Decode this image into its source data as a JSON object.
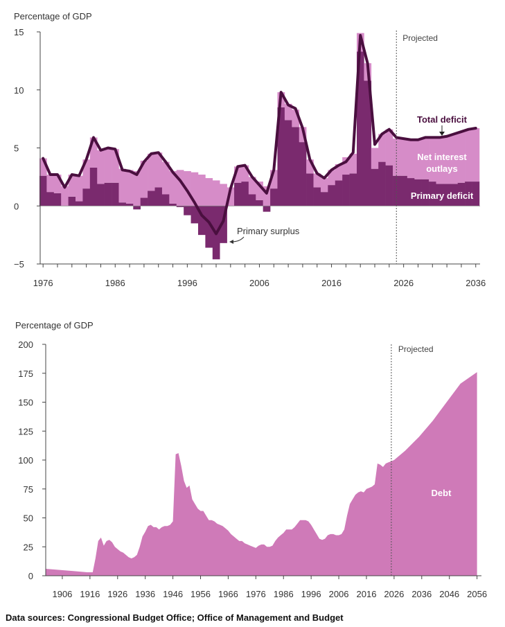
{
  "colors": {
    "net_interest": "#d68cc8",
    "primary": "#7a2a6e",
    "total_line": "#4a0f3f",
    "debt": "#cf7ab8",
    "axis": "#444444"
  },
  "chart_data": [
    {
      "type": "bar",
      "ylabel": "Percentage of GDP",
      "ylim": [
        -5,
        15
      ],
      "yticks": [
        "15",
        "10",
        "5",
        "0",
        "−5"
      ],
      "xticks": [
        "1976",
        "1986",
        "1996",
        "2006",
        "2016",
        "2026",
        "2036"
      ],
      "projected_label": "Projected",
      "projected_start": 2025,
      "annotations": {
        "total_deficit": "Total deficit",
        "net_interest": [
          "Net interest",
          "outlays"
        ],
        "primary_deficit": "Primary deficit",
        "primary_surplus": "Primary surplus"
      },
      "years": [
        1976,
        1977,
        1978,
        1979,
        1980,
        1981,
        1982,
        1983,
        1984,
        1985,
        1986,
        1987,
        1988,
        1989,
        1990,
        1991,
        1992,
        1993,
        1994,
        1995,
        1996,
        1997,
        1998,
        1999,
        2000,
        2001,
        2002,
        2003,
        2004,
        2005,
        2006,
        2007,
        2008,
        2009,
        2010,
        2011,
        2012,
        2013,
        2014,
        2015,
        2016,
        2017,
        2018,
        2019,
        2020,
        2021,
        2022,
        2023,
        2024,
        2025,
        2026,
        2027,
        2028,
        2029,
        2030,
        2031,
        2032,
        2033,
        2034,
        2035,
        2036
      ],
      "series": [
        {
          "name": "Net interest outlays",
          "values": [
            1.5,
            1.5,
            1.6,
            1.7,
            1.9,
            2.2,
            2.5,
            2.6,
            2.9,
            3.0,
            2.9,
            2.9,
            2.9,
            3.0,
            3.2,
            3.2,
            3.0,
            2.8,
            2.8,
            3.1,
            3.0,
            2.9,
            2.7,
            2.4,
            2.2,
            1.9,
            1.6,
            1.4,
            1.4,
            1.5,
            1.6,
            1.7,
            1.6,
            1.3,
            1.4,
            1.5,
            1.3,
            1.2,
            1.2,
            1.2,
            1.3,
            1.4,
            1.5,
            1.7,
            1.6,
            1.5,
            1.8,
            2.4,
            3.1,
            3.2,
            3.2,
            3.3,
            3.4,
            3.6,
            3.8,
            4.0,
            4.1,
            4.3,
            4.4,
            4.5,
            4.6
          ]
        },
        {
          "name": "Primary deficit",
          "values": [
            2.6,
            1.2,
            1.1,
            0.0,
            0.8,
            0.4,
            1.5,
            3.3,
            1.9,
            2.0,
            2.0,
            0.3,
            0.2,
            -0.3,
            0.7,
            1.3,
            1.6,
            1.0,
            0.2,
            -0.1,
            -0.8,
            -1.5,
            -2.5,
            -3.6,
            -4.6,
            -3.2,
            0.0,
            2.0,
            2.1,
            1.0,
            0.5,
            -0.5,
            1.5,
            8.5,
            7.4,
            6.8,
            5.5,
            2.8,
            1.6,
            1.2,
            1.8,
            2.2,
            2.7,
            2.8,
            13.3,
            10.8,
            3.2,
            3.8,
            3.5,
            2.6,
            2.6,
            2.4,
            2.3,
            2.3,
            2.1,
            1.9,
            1.9,
            1.9,
            2.0,
            2.1,
            2.1
          ]
        },
        {
          "name": "Total deficit",
          "values": [
            4.1,
            2.7,
            2.7,
            1.6,
            2.7,
            2.6,
            4.0,
            5.9,
            4.8,
            5.0,
            4.9,
            3.1,
            3.0,
            2.7,
            3.8,
            4.5,
            4.6,
            3.8,
            2.9,
            2.2,
            1.3,
            0.3,
            -0.8,
            -1.4,
            -2.4,
            -1.3,
            1.5,
            3.4,
            3.5,
            2.5,
            1.8,
            1.1,
            3.1,
            9.8,
            8.7,
            8.4,
            6.7,
            4.0,
            2.8,
            2.4,
            3.1,
            3.5,
            3.8,
            4.6,
            14.7,
            12.3,
            5.3,
            6.2,
            6.6,
            5.9,
            5.8,
            5.7,
            5.7,
            5.9,
            5.9,
            5.9,
            6.0,
            6.2,
            6.4,
            6.6,
            6.7
          ]
        }
      ]
    },
    {
      "type": "area",
      "ylabel": "Percentage of GDP",
      "ylim": [
        0,
        200
      ],
      "yticks": [
        "200",
        "175",
        "150",
        "125",
        "100",
        "75",
        "50",
        "25",
        "0"
      ],
      "xticks": [
        "1906",
        "1916",
        "1926",
        "1936",
        "1946",
        "1956",
        "1966",
        "1976",
        "1986",
        "1996",
        "2006",
        "2016",
        "2026",
        "2036",
        "2046",
        "2056"
      ],
      "projected_label": "Projected",
      "projected_start": 2025,
      "series_label": "Debt",
      "x": [
        1900,
        1905,
        1910,
        1915,
        1916,
        1917,
        1918,
        1919,
        1920,
        1921,
        1922,
        1923,
        1924,
        1925,
        1926,
        1927,
        1928,
        1929,
        1930,
        1931,
        1932,
        1933,
        1934,
        1935,
        1936,
        1937,
        1938,
        1939,
        1940,
        1941,
        1942,
        1943,
        1944,
        1945,
        1946,
        1947,
        1948,
        1949,
        1950,
        1951,
        1952,
        1953,
        1954,
        1955,
        1956,
        1957,
        1958,
        1959,
        1960,
        1961,
        1962,
        1963,
        1964,
        1965,
        1966,
        1967,
        1968,
        1969,
        1970,
        1971,
        1972,
        1973,
        1974,
        1975,
        1976,
        1977,
        1978,
        1979,
        1980,
        1981,
        1982,
        1983,
        1984,
        1985,
        1986,
        1987,
        1988,
        1989,
        1990,
        1991,
        1992,
        1993,
        1994,
        1995,
        1996,
        1997,
        1998,
        1999,
        2000,
        2001,
        2002,
        2003,
        2004,
        2005,
        2006,
        2007,
        2008,
        2009,
        2010,
        2011,
        2012,
        2013,
        2014,
        2015,
        2016,
        2017,
        2018,
        2019,
        2020,
        2021,
        2022,
        2023,
        2024,
        2025,
        2026,
        2030,
        2035,
        2040,
        2045,
        2050,
        2056
      ],
      "values": [
        6,
        5,
        4,
        3,
        3,
        3,
        15,
        30,
        33,
        26,
        30,
        31,
        29,
        25,
        23,
        21,
        20,
        18,
        16,
        15,
        16,
        18,
        25,
        34,
        38,
        43,
        44,
        42,
        42,
        40,
        42,
        43,
        43,
        44,
        47,
        105,
        106,
        95,
        82,
        76,
        78,
        66,
        62,
        58,
        56,
        56,
        52,
        48,
        48,
        47,
        45,
        44,
        43,
        41,
        39,
        36,
        34,
        32,
        30,
        30,
        28,
        27,
        26,
        25,
        24,
        26,
        27,
        27,
        25,
        25,
        26,
        30,
        33,
        35,
        37,
        40,
        40,
        40,
        42,
        45,
        48,
        48,
        48,
        47,
        44,
        40,
        36,
        32,
        31,
        32,
        35,
        36,
        36,
        35,
        35,
        36,
        40,
        52,
        62,
        66,
        70,
        72,
        73,
        72,
        75,
        76,
        77,
        79,
        97,
        96,
        94,
        97,
        98,
        99,
        100,
        108,
        120,
        134,
        150,
        166,
        176
      ]
    }
  ],
  "source_text": "Data sources: Congressional Budget Office; Office of Management and Budget"
}
